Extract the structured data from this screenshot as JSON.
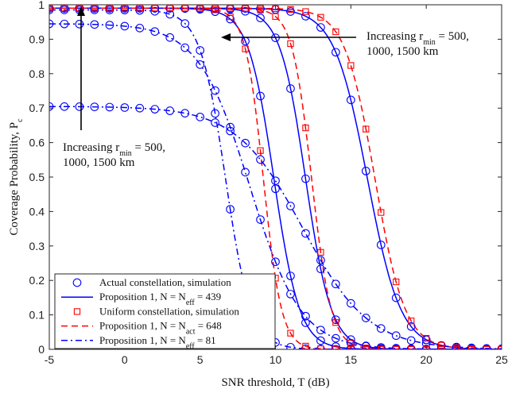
{
  "chart_data": {
    "type": "line",
    "xlabel": "SNR threshold, T (dB)",
    "ylabel": "Coverage Probability, P_c",
    "xlim": [
      -5,
      25
    ],
    "ylim": [
      0,
      1
    ],
    "xticks": [
      -5,
      0,
      5,
      10,
      15,
      20,
      25
    ],
    "yticks": [
      0,
      0.1,
      0.2,
      0.3,
      0.4,
      0.5,
      0.6,
      0.7,
      0.8,
      0.9,
      1
    ],
    "grid": false,
    "legend_position": "bottom-left",
    "annotations": [
      {
        "lines": [
          "Increasing r_min = 500,",
          "1000, 1500 km"
        ],
        "position": "top-right",
        "arrow": "left"
      },
      {
        "lines": [
          "Increasing r_min = 500,",
          "1000, 1500 km"
        ],
        "position": "mid-left",
        "arrow": "up"
      }
    ],
    "legend": [
      {
        "label": "Actual constellation, simulation",
        "style": "blue-circle"
      },
      {
        "label": "Proposition 1, N = N_eff = 439",
        "style": "blue-solid"
      },
      {
        "label": "Uniform constellation, simulation",
        "style": "red-square"
      },
      {
        "label": "Proposition 1, N = N_act = 648",
        "style": "red-dashed"
      },
      {
        "label": "Proposition 1, N = N_eff = 81",
        "style": "blue-dashdot"
      }
    ],
    "series": [
      {
        "legend": 1,
        "color": "#0000ff",
        "dash": "solid",
        "y_max": 0.99,
        "midpoint": 9.9,
        "width": 0.85
      },
      {
        "legend": 1,
        "color": "#0000ff",
        "dash": "solid",
        "y_max": 0.99,
        "midpoint": 12.0,
        "width": 0.85
      },
      {
        "legend": 1,
        "color": "#0000ff",
        "dash": "solid",
        "y_max": 0.99,
        "midpoint": 16.1,
        "width": 1.1
      },
      {
        "legend": 3,
        "color": "#ff0000",
        "dash": "dashed",
        "y_max": 0.99,
        "midpoint": 9.2,
        "width": 0.6
      },
      {
        "legend": 3,
        "color": "#ff0000",
        "dash": "dashed",
        "y_max": 0.99,
        "midpoint": 12.4,
        "width": 0.65
      },
      {
        "legend": 3,
        "color": "#ff0000",
        "dash": "dashed",
        "y_max": 0.99,
        "midpoint": 16.6,
        "width": 1.0
      },
      {
        "legend": 4,
        "color": "#0000ff",
        "dash": "dashdot",
        "y_max": 0.985,
        "midpoint": 6.7,
        "width": 0.85
      },
      {
        "legend": 4,
        "color": "#0000ff",
        "dash": "dashdot",
        "y_max": 0.945,
        "midpoint": 8.3,
        "width": 1.7
      },
      {
        "legend": 4,
        "color": "#0000ff",
        "dash": "dashdot",
        "y_max": 0.705,
        "midpoint": 11.8,
        "width": 2.2
      }
    ],
    "markers": [
      {
        "legend": 0,
        "shape": "circle",
        "color": "#0000ff",
        "x": [
          -5,
          -4,
          -3,
          -2,
          -1,
          0,
          1,
          2,
          3,
          4,
          5,
          6,
          7,
          8,
          9,
          10,
          11,
          12,
          13,
          14,
          15,
          16,
          17,
          18,
          19,
          20,
          21,
          22,
          23,
          24,
          25
        ],
        "curve": 0
      },
      {
        "legend": 0,
        "shape": "circle",
        "color": "#0000ff",
        "x": [
          -5,
          -4,
          -3,
          -2,
          -1,
          0,
          1,
          2,
          3,
          4,
          5,
          6,
          7,
          8,
          9,
          10,
          11,
          12,
          13,
          14,
          15,
          16,
          17,
          18,
          19,
          20,
          21,
          22,
          23,
          24,
          25
        ],
        "curve": 1
      },
      {
        "legend": 0,
        "shape": "circle",
        "color": "#0000ff",
        "x": [
          -5,
          -4,
          -3,
          -2,
          -1,
          0,
          1,
          2,
          3,
          4,
          5,
          6,
          7,
          8,
          9,
          10,
          11,
          12,
          13,
          14,
          15,
          16,
          17,
          18,
          19,
          20,
          21,
          22,
          23,
          24,
          25
        ],
        "curve": 2
      },
      {
        "legend": 0,
        "shape": "circle",
        "color": "#0000ff",
        "x": [
          -5,
          -4,
          -3,
          -2,
          -1,
          0,
          1,
          2,
          3,
          4,
          5,
          6,
          7,
          8,
          9,
          10,
          11,
          12,
          13,
          14,
          15,
          16,
          17,
          18,
          19,
          20,
          21,
          22,
          23,
          24,
          25
        ],
        "curve": 6
      },
      {
        "legend": 0,
        "shape": "circle",
        "color": "#0000ff",
        "x": [
          -5,
          -4,
          -3,
          -2,
          -1,
          0,
          1,
          2,
          3,
          4,
          5,
          6,
          7,
          8,
          9,
          10,
          11,
          12,
          13,
          14,
          15,
          16,
          17,
          18,
          19,
          20,
          21,
          22,
          23,
          24,
          25
        ],
        "curve": 7
      },
      {
        "legend": 0,
        "shape": "circle",
        "color": "#0000ff",
        "x": [
          -5,
          -4,
          -3,
          -2,
          -1,
          0,
          1,
          2,
          3,
          4,
          5,
          6,
          7,
          8,
          9,
          10,
          11,
          12,
          13,
          14,
          15,
          16,
          17,
          18,
          19,
          20,
          21,
          22,
          23,
          24,
          25
        ],
        "curve": 8
      },
      {
        "legend": 2,
        "shape": "square",
        "color": "#ff0000",
        "x": [
          -5,
          -4,
          -3,
          -2,
          -1,
          0,
          1,
          2,
          3,
          4,
          5,
          6,
          7,
          8,
          9,
          10,
          11,
          12,
          13,
          14,
          15,
          16,
          17,
          18,
          19,
          20,
          21,
          22,
          23,
          24,
          25
        ],
        "curve": 3
      },
      {
        "legend": 2,
        "shape": "square",
        "color": "#ff0000",
        "x": [
          -5,
          -4,
          -3,
          -2,
          -1,
          0,
          1,
          2,
          3,
          4,
          5,
          6,
          7,
          8,
          9,
          10,
          11,
          12,
          13,
          14,
          15,
          16,
          17,
          18,
          19,
          20,
          21,
          22,
          23,
          24,
          25
        ],
        "curve": 4
      },
      {
        "legend": 2,
        "shape": "square",
        "color": "#ff0000",
        "x": [
          -5,
          -4,
          -3,
          -2,
          -1,
          0,
          1,
          2,
          3,
          4,
          5,
          6,
          7,
          8,
          9,
          10,
          11,
          12,
          13,
          14,
          15,
          16,
          17,
          18,
          19,
          20,
          21,
          22,
          23,
          24,
          25
        ],
        "curve": 5
      }
    ]
  }
}
